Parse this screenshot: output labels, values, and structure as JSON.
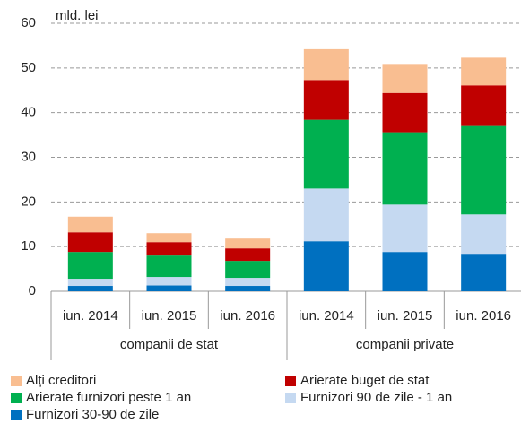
{
  "chart_data": {
    "type": "stacked_bar",
    "unit_label": "mld. lei",
    "categories": [
      "iun. 2014",
      "iun. 2015",
      "iun. 2016",
      "iun. 2014",
      "iun. 2015",
      "iun. 2016"
    ],
    "groups": [
      "companii de stat",
      "companii private"
    ],
    "series": [
      {
        "name": "Alți creditori",
        "color": "#f9be91",
        "values": [
          3.5,
          2.0,
          2.2,
          6.9,
          6.5,
          6.2
        ]
      },
      {
        "name": "Arierate buget de stat",
        "color": "#c00000",
        "values": [
          4.4,
          3.0,
          2.8,
          8.9,
          8.8,
          9.1
        ]
      },
      {
        "name": "Arierate furnizori peste 1 an",
        "color": "#00b050",
        "values": [
          6.0,
          4.8,
          3.8,
          15.4,
          16.2,
          19.8
        ]
      },
      {
        "name": "Furnizori 90 de zile - 1 an",
        "color": "#c5d9f1",
        "values": [
          1.6,
          1.9,
          1.8,
          11.8,
          10.6,
          8.8
        ]
      },
      {
        "name": "Furnizori 30-90 de zile",
        "color": "#0070c0",
        "values": [
          1.2,
          1.3,
          1.2,
          11.2,
          8.8,
          8.4
        ]
      }
    ],
    "ylim": [
      0,
      60
    ],
    "yticks": [
      0,
      10,
      20,
      30,
      40,
      50,
      60
    ],
    "grid": true
  }
}
